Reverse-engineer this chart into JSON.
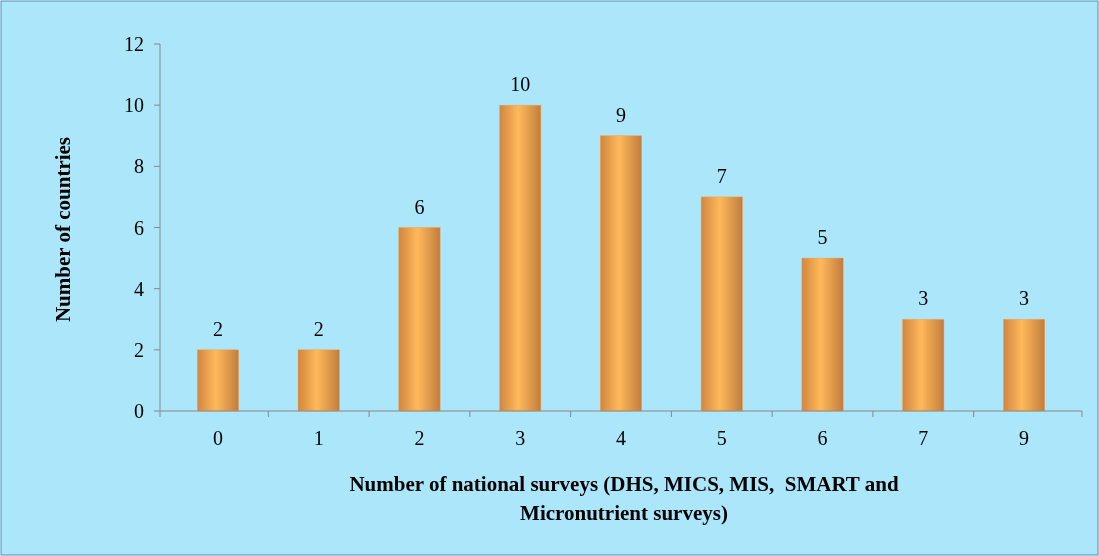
{
  "chart_data": {
    "type": "bar",
    "categories": [
      "0",
      "1",
      "2",
      "3",
      "4",
      "5",
      "6",
      "7",
      "9"
    ],
    "values": [
      2,
      2,
      6,
      10,
      9,
      7,
      5,
      3,
      3
    ],
    "color": "#f9a04e",
    "xlabel": "Number of national surveys (DHS, MICS, MIS,  SMART and Micronutrient surveys)",
    "ylabel": "Number of countries",
    "ylim": [
      0,
      12
    ],
    "yticks": [
      0,
      2,
      4,
      6,
      8,
      10,
      12
    ],
    "data_labels": true
  }
}
